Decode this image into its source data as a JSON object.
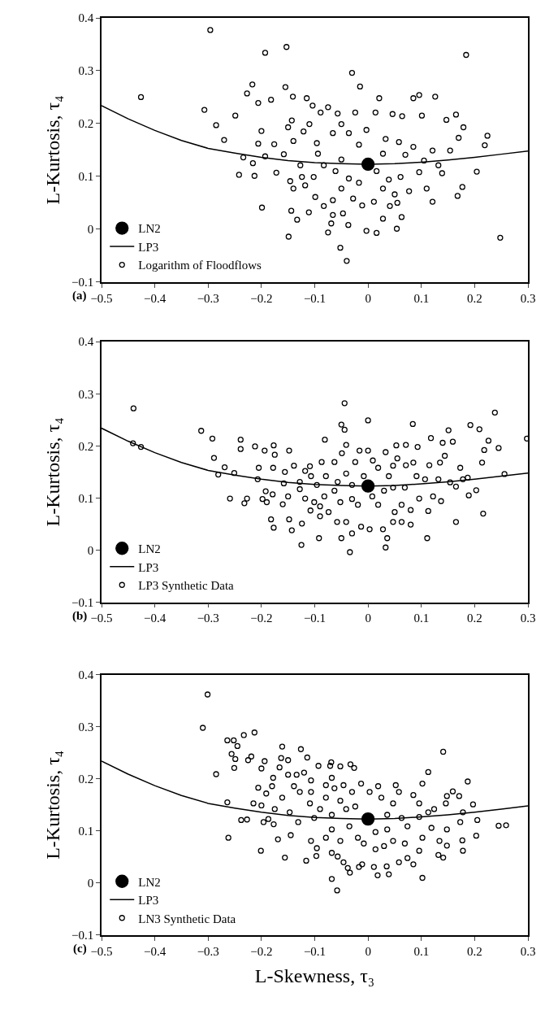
{
  "chart_data": [
    {
      "type": "scatter",
      "ylabel": "L-Kurtosis, τ₄",
      "annotations": [
        "(a)"
      ],
      "xlim": [
        -0.5,
        0.3
      ],
      "xticks": [
        -0.5,
        -0.4,
        -0.3,
        -0.2,
        -0.1,
        0.0,
        0.1,
        0.2,
        0.3
      ],
      "ylim": [
        -0.1,
        0.4
      ],
      "yticks": [
        -0.1,
        0.0,
        0.1,
        0.2,
        0.3,
        0.4
      ],
      "grid": false,
      "legend": "bottom left",
      "series": [
        {
          "name": "LN2",
          "marker": "circle",
          "color": "#000000",
          "x": [
            0.0
          ],
          "values": [
            0.123
          ]
        },
        {
          "name": "LP3",
          "type": "line",
          "marker": "none",
          "line_style": "solid",
          "color": "#000000",
          "x": [
            -0.5,
            -0.45,
            -0.4,
            -0.35,
            -0.3,
            -0.25,
            -0.2,
            -0.15,
            -0.1,
            -0.05,
            0.0,
            0.05,
            0.1,
            0.15,
            0.2,
            0.25,
            0.3
          ],
          "values": [
            0.234,
            0.209,
            0.187,
            0.168,
            0.153,
            0.144,
            0.136,
            0.13,
            0.126,
            0.124,
            0.123,
            0.124,
            0.127,
            0.131,
            0.136,
            0.142,
            0.148
          ]
        },
        {
          "name": "Logarithm of Floodflows",
          "marker": "circle",
          "color": "#000000",
          "x": [
            -0.426,
            -0.296,
            -0.193,
            -0.153,
            0.184,
            -0.03,
            -0.015,
            -0.307,
            -0.217,
            -0.227,
            -0.155,
            -0.141,
            -0.115,
            0.021,
            0.085,
            0.096,
            0.126,
            -0.285,
            -0.27,
            -0.249,
            -0.206,
            -0.182,
            -0.2,
            -0.206,
            -0.234,
            -0.242,
            -0.213,
            -0.216,
            -0.172,
            -0.199,
            -0.149,
            -0.144,
            -0.133,
            -0.111,
            -0.052,
            -0.04,
            -0.075,
            -0.003,
            0.016,
            0.054,
            0.028,
            0.063,
            0.248,
            0.121,
            0.168,
            0.204,
            0.219,
            0.224,
            0.17,
            0.165,
            0.147,
            0.179,
            0.177,
            0.139,
            0.101,
            0.064,
            0.046,
            0.014,
            -0.024,
            -0.075,
            -0.089,
            -0.057,
            -0.104,
            -0.143,
            -0.15,
            -0.14,
            -0.176,
            -0.158,
            -0.193,
            -0.121,
            -0.11,
            -0.096,
            -0.094,
            -0.066,
            -0.05,
            -0.036,
            -0.017,
            -0.003,
            0.033,
            0.058,
            0.07,
            0.085,
            0.105,
            0.121,
            0.132,
            0.154,
            0.096,
            0.11,
            0.077,
            0.055,
            0.041,
            0.011,
            -0.011,
            -0.028,
            -0.05,
            -0.066,
            -0.083,
            -0.099,
            -0.118,
            -0.14,
            -0.146,
            -0.124,
            -0.102,
            -0.083,
            -0.061,
            -0.036,
            -0.017,
            0.016,
            0.039,
            0.061,
            0.028,
            -0.05,
            -0.127,
            -0.066,
            -0.047,
            -0.037,
            -0.069,
            0.028,
            0.05
          ],
          "values": [
            0.25,
            0.377,
            0.334,
            0.345,
            0.33,
            0.296,
            0.27,
            0.226,
            0.274,
            0.257,
            0.269,
            0.251,
            0.248,
            0.248,
            0.248,
            0.254,
            0.251,
            0.197,
            0.169,
            0.215,
            0.239,
            0.245,
            0.186,
            0.162,
            0.136,
            0.103,
            0.101,
            0.125,
            0.107,
            0.041,
            -0.014,
            0.035,
            0.018,
            0.032,
            -0.035,
            -0.06,
            -0.006,
            -0.003,
            -0.007,
            0.001,
            0.02,
            0.023,
            -0.016,
            0.052,
            0.063,
            0.109,
            0.159,
            0.177,
            0.173,
            0.217,
            0.207,
            0.193,
            0.08,
            0.106,
            0.215,
            0.214,
            0.218,
            0.221,
            0.221,
            0.231,
            0.221,
            0.219,
            0.234,
            0.206,
            0.193,
            0.167,
            0.161,
            0.142,
            0.138,
            0.185,
            0.199,
            0.163,
            0.143,
            0.182,
            0.199,
            0.182,
            0.16,
            0.188,
            0.171,
            0.165,
            0.141,
            0.156,
            0.13,
            0.149,
            0.121,
            0.149,
            0.108,
            0.077,
            0.072,
            0.05,
            0.044,
            0.052,
            0.045,
            0.058,
            0.077,
            0.055,
            0.044,
            0.061,
            0.083,
            0.077,
            0.091,
            0.099,
            0.099,
            0.121,
            0.11,
            0.096,
            0.088,
            0.11,
            0.094,
            0.099,
            0.143,
            0.132,
            0.121,
            0.027,
            0.03,
            0.008,
            0.011,
            0.077,
            0.066
          ]
        }
      ]
    },
    {
      "type": "scatter",
      "ylabel": "L-Kurtosis, τ₄",
      "annotations": [
        "(b)"
      ],
      "xlim": [
        -0.5,
        0.3
      ],
      "xticks": [
        -0.5,
        -0.4,
        -0.3,
        -0.2,
        -0.1,
        0.0,
        0.1,
        0.2,
        0.3
      ],
      "ylim": [
        -0.1,
        0.4
      ],
      "yticks": [
        -0.1,
        0.0,
        0.1,
        0.2,
        0.3,
        0.4
      ],
      "grid": false,
      "legend": "bottom left",
      "series": [
        {
          "name": "LN2",
          "marker": "circle",
          "color": "#000000",
          "x": [
            0.0
          ],
          "values": [
            0.123
          ]
        },
        {
          "name": "LP3",
          "type": "line",
          "marker": "none",
          "line_style": "solid",
          "color": "#000000",
          "x": [
            -0.5,
            -0.45,
            -0.4,
            -0.35,
            -0.3,
            -0.25,
            -0.2,
            -0.15,
            -0.1,
            -0.05,
            0.0,
            0.05,
            0.1,
            0.15,
            0.2,
            0.25,
            0.3
          ],
          "values": [
            0.234,
            0.209,
            0.187,
            0.168,
            0.153,
            0.144,
            0.136,
            0.13,
            0.126,
            0.124,
            0.123,
            0.124,
            0.127,
            0.131,
            0.136,
            0.142,
            0.148
          ]
        },
        {
          "name": "LP3 Synthetic Data",
          "marker": "circle",
          "color": "#000000",
          "x": [
            -0.44,
            -0.441,
            -0.426,
            -0.313,
            -0.292,
            -0.289,
            -0.281,
            -0.269,
            -0.251,
            -0.259,
            -0.232,
            -0.227,
            -0.239,
            -0.239,
            -0.212,
            -0.194,
            -0.177,
            -0.175,
            -0.205,
            -0.207,
            -0.198,
            -0.19,
            -0.192,
            -0.179,
            -0.182,
            -0.177,
            -0.16,
            -0.148,
            -0.143,
            -0.124,
            -0.125,
            -0.092,
            -0.05,
            -0.034,
            0.033,
            0.036,
            0.111,
            0.165,
            0.216,
            -0.044,
            -0.05,
            -0.044,
            0.0,
            0.084,
            0.151,
            0.192,
            0.209,
            0.238,
            0.298,
            0.256,
            0.245,
            0.226,
            0.218,
            0.214,
            0.203,
            0.189,
            0.173,
            0.178,
            0.159,
            0.14,
            0.118,
            0.093,
            0.071,
            0.053,
            0.033,
            0.055,
            0.047,
            0.071,
            0.085,
            0.115,
            0.135,
            0.144,
            0.165,
            0.132,
            0.154,
            0.137,
            0.122,
            0.113,
            0.096,
            0.08,
            0.063,
            0.05,
            0.063,
            0.08,
            0.047,
            0.028,
            0.003,
            -0.013,
            -0.03,
            -0.041,
            -0.058,
            -0.074,
            -0.09,
            -0.09,
            -0.108,
            -0.118,
            -0.101,
            -0.082,
            -0.096,
            -0.079,
            -0.107,
            -0.128,
            -0.128,
            -0.118,
            -0.109,
            -0.139,
            -0.148,
            -0.156,
            -0.178,
            -0.158,
            -0.15,
            -0.081,
            -0.087,
            -0.063,
            -0.049,
            -0.041,
            -0.016,
            0.0,
            0.009,
            -0.024,
            -0.041,
            -0.057,
            -0.063,
            -0.052,
            -0.03,
            -0.019,
            0.008,
            0.019,
            0.03,
            0.047,
            0.069,
            0.091,
            0.107,
            0.039,
            0.019,
            -0.008,
            -0.03,
            0.187
          ],
          "values": [
            0.272,
            0.205,
            0.198,
            0.229,
            0.214,
            0.177,
            0.145,
            0.159,
            0.148,
            0.099,
            0.09,
            0.099,
            0.212,
            0.194,
            0.199,
            0.191,
            0.201,
            0.183,
            0.158,
            0.136,
            0.098,
            0.092,
            0.113,
            0.107,
            0.059,
            0.043,
            0.088,
            0.059,
            0.038,
            0.051,
            0.01,
            0.023,
            0.023,
            -0.004,
            0.005,
            0.023,
            0.023,
            0.054,
            0.07,
            0.282,
            0.241,
            0.231,
            0.249,
            0.242,
            0.23,
            0.24,
            0.232,
            0.264,
            0.214,
            0.146,
            0.196,
            0.21,
            0.192,
            0.168,
            0.115,
            0.105,
            0.158,
            0.136,
            0.208,
            0.206,
            0.215,
            0.198,
            0.202,
            0.201,
            0.188,
            0.176,
            0.162,
            0.163,
            0.168,
            0.163,
            0.168,
            0.181,
            0.122,
            0.136,
            0.13,
            0.094,
            0.103,
            0.075,
            0.099,
            0.077,
            0.087,
            0.073,
            0.054,
            0.049,
            0.054,
            0.04,
            0.04,
            0.045,
            0.032,
            0.054,
            0.054,
            0.073,
            0.065,
            0.084,
            0.076,
            0.099,
            0.092,
            0.103,
            0.125,
            0.142,
            0.142,
            0.131,
            0.117,
            0.152,
            0.161,
            0.162,
            0.191,
            0.15,
            0.158,
            0.128,
            0.103,
            0.212,
            0.169,
            0.169,
            0.186,
            0.202,
            0.191,
            0.191,
            0.172,
            0.169,
            0.147,
            0.131,
            0.114,
            0.092,
            0.098,
            0.087,
            0.103,
            0.087,
            0.114,
            0.12,
            0.12,
            0.142,
            0.136,
            0.142,
            0.158,
            0.142,
            0.125,
            0.139
          ]
        }
      ]
    },
    {
      "type": "scatter",
      "ylabel": "L-Kurtosis, τ₄",
      "xlabel": "L-Skewness, τ₃",
      "annotations": [
        "(c)"
      ],
      "xlim": [
        -0.5,
        0.3
      ],
      "xticks": [
        -0.5,
        -0.4,
        -0.3,
        -0.2,
        -0.1,
        0.0,
        0.1,
        0.2,
        0.3
      ],
      "ylim": [
        -0.1,
        0.4
      ],
      "yticks": [
        -0.1,
        0.0,
        0.1,
        0.2,
        0.3,
        0.4
      ],
      "grid": false,
      "legend": "bottom left",
      "series": [
        {
          "name": "LN2",
          "marker": "circle",
          "color": "#000000",
          "x": [
            0.0
          ],
          "values": [
            0.123
          ]
        },
        {
          "name": "LP3",
          "type": "line",
          "marker": "none",
          "line_style": "solid",
          "color": "#000000",
          "x": [
            -0.5,
            -0.45,
            -0.4,
            -0.35,
            -0.3,
            -0.25,
            -0.2,
            -0.15,
            -0.1,
            -0.05,
            0.0,
            0.05,
            0.1,
            0.15,
            0.2,
            0.25,
            0.3
          ],
          "values": [
            0.234,
            0.209,
            0.187,
            0.168,
            0.153,
            0.144,
            0.136,
            0.13,
            0.126,
            0.124,
            0.123,
            0.124,
            0.127,
            0.131,
            0.136,
            0.142,
            0.148
          ]
        },
        {
          "name": "LN3 Synthetic Data",
          "marker": "circle",
          "color": "#000000",
          "x": [
            -0.301,
            -0.31,
            -0.285,
            -0.264,
            -0.252,
            -0.245,
            -0.256,
            -0.249,
            -0.251,
            -0.233,
            -0.213,
            -0.225,
            -0.219,
            -0.264,
            -0.262,
            -0.238,
            -0.227,
            -0.215,
            -0.2,
            -0.206,
            -0.2,
            -0.194,
            -0.201,
            -0.196,
            -0.187,
            -0.177,
            -0.169,
            -0.156,
            -0.145,
            -0.116,
            -0.161,
            -0.126,
            -0.114,
            -0.163,
            -0.15,
            -0.166,
            -0.178,
            -0.18,
            -0.191,
            -0.175,
            -0.161,
            -0.15,
            -0.134,
            -0.12,
            -0.139,
            -0.128,
            -0.147,
            -0.131,
            -0.107,
            -0.107,
            -0.109,
            -0.101,
            -0.107,
            -0.096,
            -0.097,
            -0.079,
            -0.093,
            -0.071,
            -0.069,
            -0.052,
            -0.033,
            -0.026,
            -0.068,
            -0.079,
            -0.063,
            -0.046,
            -0.013,
            -0.03,
            -0.052,
            -0.079,
            -0.09,
            -0.068,
            -0.041,
            -0.024,
            -0.068,
            -0.052,
            -0.035,
            -0.019,
            -0.008,
            -0.068,
            -0.057,
            -0.046,
            -0.038,
            -0.034,
            -0.017,
            -0.011,
            -0.068,
            -0.058,
            0.011,
            0.018,
            0.035,
            0.039,
            0.014,
            0.03,
            0.047,
            0.058,
            0.074,
            0.085,
            0.069,
            0.014,
            0.036,
            0.003,
            0.019,
            0.025,
            0.052,
            0.058,
            0.047,
            0.036,
            0.063,
            0.074,
            0.085,
            0.102,
            0.113,
            0.141,
            0.096,
            0.113,
            0.124,
            0.146,
            0.148,
            0.159,
            0.171,
            0.187,
            0.197,
            0.178,
            0.173,
            0.205,
            0.203,
            0.177,
            0.178,
            0.148,
            0.141,
            0.132,
            0.134,
            0.148,
            0.119,
            0.102,
            0.096,
            0.102,
            0.245,
            0.259,
            0.096
          ],
          "values": [
            0.362,
            0.298,
            0.209,
            0.274,
            0.274,
            0.263,
            0.248,
            0.238,
            0.221,
            0.284,
            0.289,
            0.236,
            0.243,
            0.155,
            0.087,
            0.121,
            0.122,
            0.153,
            0.149,
            0.183,
            0.22,
            0.234,
            0.062,
            0.117,
            0.123,
            0.113,
            0.084,
            0.049,
            0.092,
            0.043,
            0.262,
            0.257,
            0.241,
            0.24,
            0.236,
            0.222,
            0.202,
            0.186,
            0.172,
            0.142,
            0.164,
            0.208,
            0.208,
            0.212,
            0.186,
            0.175,
            0.136,
            0.117,
            0.197,
            0.175,
            0.153,
            0.125,
            0.081,
            0.067,
            0.052,
            0.087,
            0.225,
            0.225,
            0.232,
            0.224,
            0.228,
            0.221,
            0.202,
            0.188,
            0.182,
            0.188,
            0.191,
            0.175,
            0.158,
            0.164,
            0.142,
            0.131,
            0.142,
            0.147,
            0.103,
            0.081,
            0.109,
            0.087,
            0.076,
            0.058,
            0.051,
            0.04,
            0.029,
            0.02,
            0.031,
            0.036,
            0.008,
            -0.014,
            0.031,
            0.015,
            0.032,
            0.017,
            0.065,
            0.071,
            0.081,
            0.04,
            0.048,
            0.036,
            0.076,
            0.098,
            0.103,
            0.175,
            0.186,
            0.164,
            0.188,
            0.175,
            0.153,
            0.131,
            0.125,
            0.109,
            0.169,
            0.191,
            0.213,
            0.252,
            0.153,
            0.136,
            0.142,
            0.153,
            0.167,
            0.176,
            0.167,
            0.195,
            0.151,
            0.136,
            0.117,
            0.121,
            0.091,
            0.082,
            0.062,
            0.072,
            0.049,
            0.054,
            0.081,
            0.103,
            0.106,
            0.087,
            0.062,
            0.01,
            0.11,
            0.111,
            0.127
          ]
        }
      ]
    }
  ]
}
